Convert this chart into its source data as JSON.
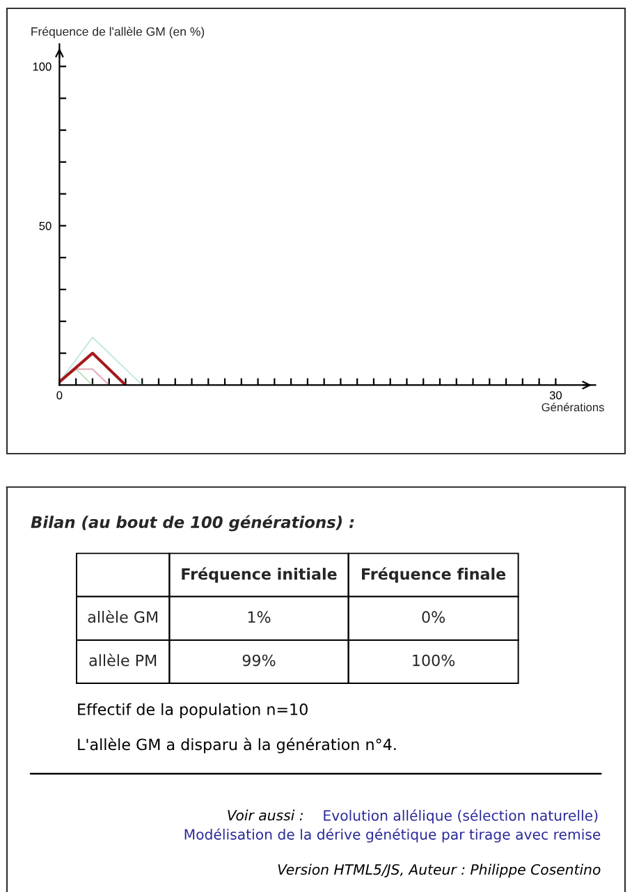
{
  "chart_data": [
    {
      "type": "line",
      "xlabel": "Générations",
      "ylabel": "Fréquence de l'allèle GM (en %)",
      "xlim": [
        0,
        32.4
      ],
      "ylim": [
        0,
        107
      ],
      "xticks": [
        0,
        {
          "value": 1,
          "label": null
        },
        {
          "value": 2,
          "label": null
        },
        {
          "value": 3,
          "label": null
        },
        {
          "value": 4,
          "label": null
        },
        {
          "value": 5,
          "label": null
        },
        {
          "value": 6,
          "label": null
        },
        {
          "value": 7,
          "label": null
        },
        {
          "value": 8,
          "label": null
        },
        {
          "value": 9,
          "label": null
        },
        {
          "value": 10,
          "label": null
        },
        {
          "value": 11,
          "label": null
        },
        {
          "value": 12,
          "label": null
        },
        {
          "value": 13,
          "label": null
        },
        {
          "value": 14,
          "label": null
        },
        {
          "value": 15,
          "label": null
        },
        {
          "value": 16,
          "label": null
        },
        {
          "value": 17,
          "label": null
        },
        {
          "value": 18,
          "label": null
        },
        {
          "value": 19,
          "label": null
        },
        {
          "value": 20,
          "label": null
        },
        {
          "value": 21,
          "label": null
        },
        {
          "value": 22,
          "label": null
        },
        {
          "value": 23,
          "label": null
        },
        {
          "value": 24,
          "label": null
        },
        {
          "value": 25,
          "label": null
        },
        {
          "value": 26,
          "label": null
        },
        {
          "value": 27,
          "label": null
        },
        {
          "value": 28,
          "label": null
        },
        {
          "value": 29,
          "label": null
        },
        30
      ],
      "yticks": [
        {
          "value": 10,
          "label": null
        },
        {
          "value": 20,
          "label": null
        },
        {
          "value": 30,
          "label": null
        },
        {
          "value": 40,
          "label": null
        },
        50,
        {
          "value": 60,
          "label": null
        },
        {
          "value": 70,
          "label": null
        },
        {
          "value": 80,
          "label": null
        },
        {
          "value": 90,
          "label": null
        },
        100
      ],
      "series": [
        {
          "color": "#c3e6e3",
          "x": [
            0,
            2,
            5
          ],
          "values": [
            1,
            15,
            0
          ]
        },
        {
          "color": "#bfe0bf",
          "x": [
            0,
            1,
            2
          ],
          "values": [
            1,
            5,
            0
          ]
        },
        {
          "color": "#e3a7b6",
          "x": [
            0,
            1,
            2,
            3
          ],
          "values": [
            1,
            5,
            5,
            0
          ]
        },
        {
          "color": "#a51a1a",
          "x": [
            0,
            2,
            4
          ],
          "values": [
            1,
            10,
            0
          ]
        }
      ]
    },
    {
      "type": "other",
      "title": "Bilan (au bout de 100 générations) :",
      "categories": [
        "Fréquence initiale",
        "Fréquence finale"
      ],
      "y_categories": [
        "allèle GM",
        "allèle PM"
      ],
      "cell_labels": [
        [
          "1%",
          "0%"
        ],
        [
          "99%",
          "100%"
        ]
      ],
      "annotations": [
        "Effectif de la population n=10",
        "L'allèle GM a disparu à la génération n°4.",
        "Voir aussi :",
        "Evolution allélique (sélection naturelle)",
        "Modélisation de la dérive génétique par tirage avec remise",
        "Version HTML5/JS, Auteur : Philippe Cosentino"
      ]
    }
  ]
}
